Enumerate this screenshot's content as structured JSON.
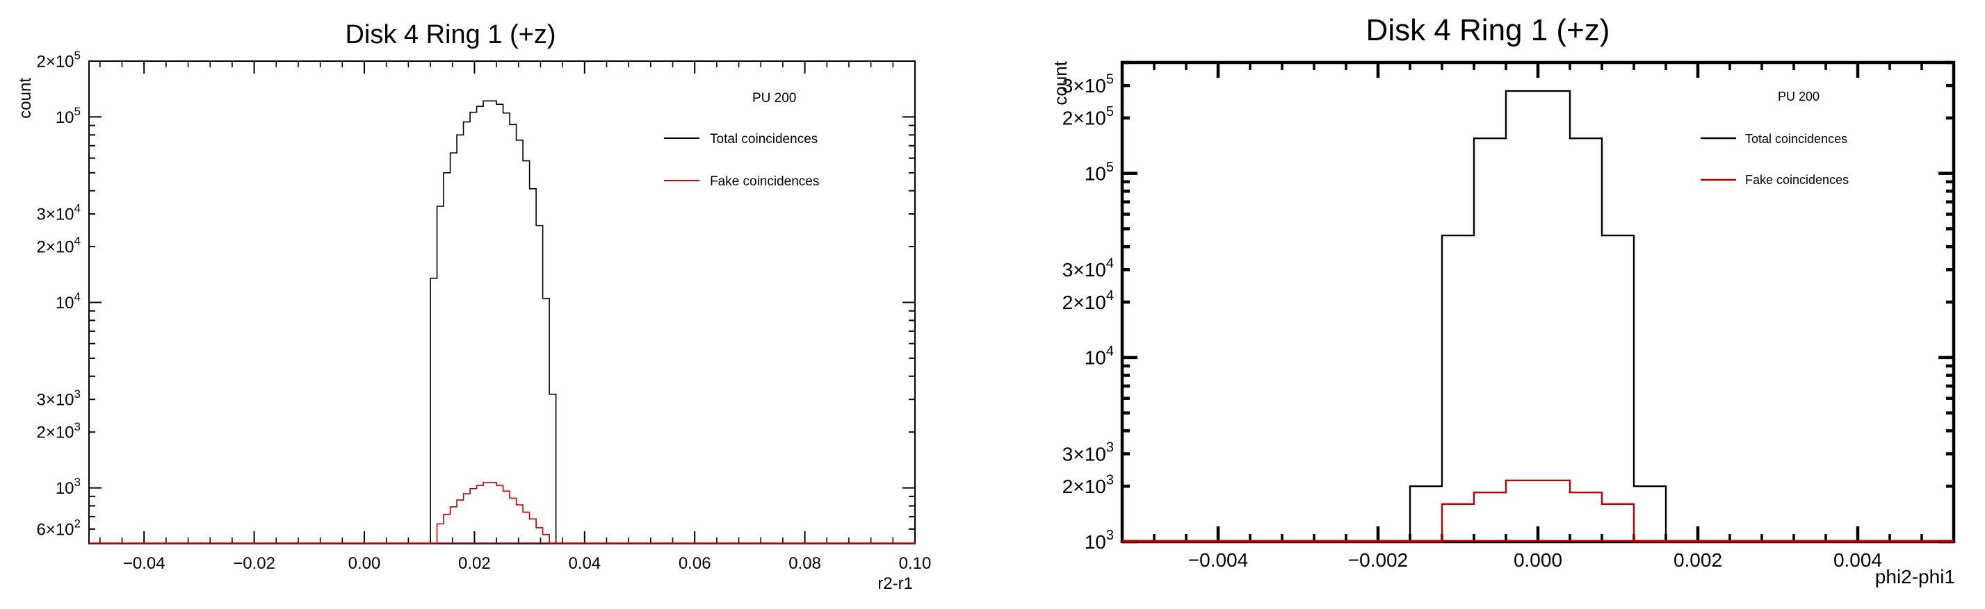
{
  "chart_data": [
    {
      "type": "histogram",
      "title": "Disk 4 Ring 1 (+z)",
      "xlabel": "r2-r1",
      "ylabel": "count",
      "yscale": "log",
      "xlim": [
        -0.05,
        0.1
      ],
      "ylim": [
        500,
        200000
      ],
      "x_ticks": [
        {
          "value": -0.04,
          "label": "−0.04"
        },
        {
          "value": -0.02,
          "label": "−0.02"
        },
        {
          "value": 0.0,
          "label": "0.00"
        },
        {
          "value": 0.02,
          "label": "0.02"
        },
        {
          "value": 0.04,
          "label": "0.04"
        },
        {
          "value": 0.06,
          "label": "0.06"
        },
        {
          "value": 0.08,
          "label": "0.08"
        },
        {
          "value": 0.1,
          "label": "0.10"
        }
      ],
      "y_ticks": [
        {
          "value": 200000,
          "mant": "2×10",
          "exp": "5"
        },
        {
          "value": 100000,
          "mant": "10",
          "exp": "5"
        },
        {
          "value": 30000,
          "mant": "3×10",
          "exp": "4"
        },
        {
          "value": 20000,
          "mant": "2×10",
          "exp": "4"
        },
        {
          "value": 10000,
          "mant": "10",
          "exp": "4"
        },
        {
          "value": 3000,
          "mant": "3×10",
          "exp": "3"
        },
        {
          "value": 2000,
          "mant": "2×10",
          "exp": "3"
        },
        {
          "value": 1000,
          "mant": "10",
          "exp": "3"
        },
        {
          "value": 600,
          "mant": "6×10",
          "exp": "2"
        }
      ],
      "legend_header": "PU 200",
      "series": [
        {
          "name": "Total coincidences",
          "color": "#000000",
          "bins": [
            [
              0.012,
              0.0132,
              13500
            ],
            [
              0.0132,
              0.0144,
              33000
            ],
            [
              0.0144,
              0.0156,
              50000
            ],
            [
              0.0156,
              0.0168,
              64000
            ],
            [
              0.0168,
              0.018,
              80000
            ],
            [
              0.018,
              0.0192,
              94000
            ],
            [
              0.0192,
              0.0204,
              106000
            ],
            [
              0.0204,
              0.0216,
              114000
            ],
            [
              0.0216,
              0.0228,
              122000
            ],
            [
              0.0228,
              0.024,
              122000
            ],
            [
              0.024,
              0.0252,
              117000
            ],
            [
              0.0252,
              0.0264,
              105000
            ],
            [
              0.0264,
              0.0276,
              91000
            ],
            [
              0.0276,
              0.0288,
              75000
            ],
            [
              0.0288,
              0.03,
              58000
            ],
            [
              0.03,
              0.0312,
              41000
            ],
            [
              0.0312,
              0.0324,
              26000
            ],
            [
              0.0324,
              0.0336,
              10500
            ],
            [
              0.0336,
              0.0348,
              3200
            ]
          ]
        },
        {
          "name": "Fake coincidences",
          "color": "#c00000",
          "bins": [
            [
              0.012,
              0.0132,
              380
            ],
            [
              0.0132,
              0.0144,
              640
            ],
            [
              0.0144,
              0.0156,
              720
            ],
            [
              0.0156,
              0.0168,
              790
            ],
            [
              0.0168,
              0.018,
              860
            ],
            [
              0.018,
              0.0192,
              930
            ],
            [
              0.0192,
              0.0204,
              990
            ],
            [
              0.0204,
              0.0216,
              1030
            ],
            [
              0.0216,
              0.0228,
              1070
            ],
            [
              0.0228,
              0.024,
              1070
            ],
            [
              0.024,
              0.0252,
              1030
            ],
            [
              0.0252,
              0.0264,
              960
            ],
            [
              0.0264,
              0.0276,
              880
            ],
            [
              0.0276,
              0.0288,
              810
            ],
            [
              0.0288,
              0.03,
              740
            ],
            [
              0.03,
              0.0312,
              680
            ],
            [
              0.0312,
              0.0324,
              610
            ],
            [
              0.0324,
              0.0336,
              560
            ],
            [
              0.0336,
              0.0348,
              430
            ]
          ]
        }
      ]
    },
    {
      "type": "histogram",
      "title": "Disk 4 Ring 1 (+z)",
      "xlabel": "phi2-phi1",
      "ylabel": "count",
      "yscale": "log",
      "xlim": [
        -0.0052,
        0.0052
      ],
      "ylim": [
        1000,
        400000
      ],
      "x_ticks": [
        {
          "value": -0.004,
          "label": "−0.004"
        },
        {
          "value": -0.002,
          "label": "−0.002"
        },
        {
          "value": 0.0,
          "label": "0.000"
        },
        {
          "value": 0.002,
          "label": "0.002"
        },
        {
          "value": 0.004,
          "label": "0.004"
        }
      ],
      "y_ticks": [
        {
          "value": 300000,
          "mant": "3×10",
          "exp": "5"
        },
        {
          "value": 200000,
          "mant": "2×10",
          "exp": "5"
        },
        {
          "value": 100000,
          "mant": "10",
          "exp": "5"
        },
        {
          "value": 30000,
          "mant": "3×10",
          "exp": "4"
        },
        {
          "value": 20000,
          "mant": "2×10",
          "exp": "4"
        },
        {
          "value": 10000,
          "mant": "10",
          "exp": "4"
        },
        {
          "value": 3000,
          "mant": "3×10",
          "exp": "3"
        },
        {
          "value": 2000,
          "mant": "2×10",
          "exp": "3"
        },
        {
          "value": 1000,
          "mant": "10",
          "exp": "3"
        }
      ],
      "legend_header": "PU 200",
      "series": [
        {
          "name": "Total coincidences",
          "color": "#000000",
          "bins": [
            [
              -0.0016,
              -0.0012,
              2000
            ],
            [
              -0.0012,
              -0.0008,
              46000
            ],
            [
              -0.0008,
              -0.0004,
              155000
            ],
            [
              -0.0004,
              0.0004,
              280000
            ],
            [
              0.0004,
              0.0008,
              155000
            ],
            [
              0.0008,
              0.0012,
              46000
            ],
            [
              0.0012,
              0.0016,
              2000
            ]
          ]
        },
        {
          "name": "Fake coincidences",
          "color": "#c00000",
          "bins": [
            [
              -0.0012,
              -0.0008,
              1600
            ],
            [
              -0.0008,
              -0.0004,
              1850
            ],
            [
              -0.0004,
              0.0004,
              2150
            ],
            [
              0.0004,
              0.0008,
              1850
            ],
            [
              0.0008,
              0.0012,
              1600
            ]
          ]
        }
      ]
    }
  ]
}
